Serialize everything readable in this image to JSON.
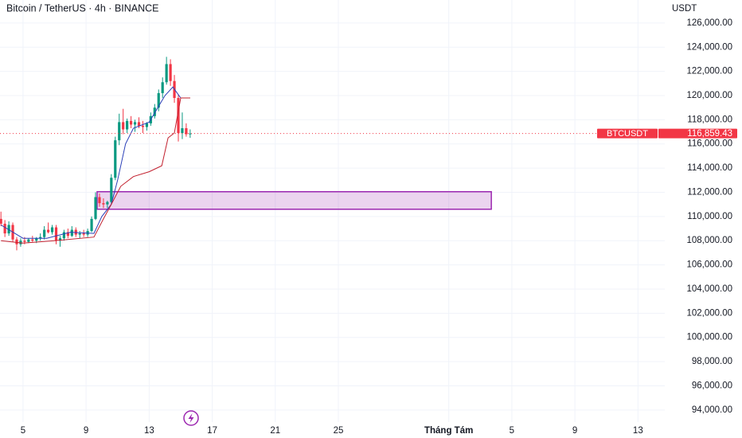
{
  "chart_data": {
    "type": "candlestick",
    "title": "Bitcoin / TetherUS · 4h · BINANCE",
    "y_axis_label": "USDT",
    "xlim": [
      3.54,
      45.7
    ],
    "xticks": [
      5,
      9,
      13,
      17,
      21,
      25,
      {
        "value": 32,
        "label": "Tháng Tám"
      },
      {
        "value": 36,
        "label": "5"
      },
      {
        "value": 40,
        "label": "9"
      },
      {
        "value": 44,
        "label": "13"
      }
    ],
    "ylim": [
      93000,
      127900
    ],
    "yticks": [
      {
        "value": 94000,
        "label": "94,000.00"
      },
      {
        "value": 96000,
        "label": "96,000.00"
      },
      {
        "value": 98000,
        "label": "98,000.00"
      },
      {
        "value": 100000,
        "label": "100,000.00"
      },
      {
        "value": 102000,
        "label": "102,000.00"
      },
      {
        "value": 104000,
        "label": "104,000.00"
      },
      {
        "value": 106000,
        "label": "106,000.00"
      },
      {
        "value": 108000,
        "label": "108,000.00"
      },
      {
        "value": 110000,
        "label": "110,000.00"
      },
      {
        "value": 112000,
        "label": "112,000.00"
      },
      {
        "value": 114000,
        "label": "114,000.00"
      },
      {
        "value": 116000,
        "label": "116,000.00"
      },
      {
        "value": 118000,
        "label": "118,000.00"
      },
      {
        "value": 120000,
        "label": "120,000.00"
      },
      {
        "value": 122000,
        "label": "122,000.00"
      },
      {
        "value": 124000,
        "label": "124,000.00"
      },
      {
        "value": 126000,
        "label": "126,000.00"
      }
    ],
    "grid": true,
    "up_color": "#089981",
    "down_color": "#f23645",
    "x": [
      3.6,
      3.85,
      4.1,
      4.35,
      4.6,
      4.85,
      5.1,
      5.35,
      5.6,
      5.85,
      6.1,
      6.35,
      6.6,
      6.85,
      7.1,
      7.35,
      7.6,
      7.85,
      8.1,
      8.35,
      8.6,
      8.85,
      9.1,
      9.35,
      9.6,
      9.85,
      10.1,
      10.35,
      10.6,
      10.85,
      11.1,
      11.35,
      11.6,
      11.85,
      12.1,
      12.35,
      12.6,
      12.85,
      13.1,
      13.35,
      13.6,
      13.85,
      14.1,
      14.35,
      14.6,
      14.85,
      15.1,
      15.35,
      15.6
    ],
    "open": [
      109800,
      109400,
      108600,
      109300,
      108100,
      107700,
      108000,
      107900,
      108100,
      108000,
      108200,
      108300,
      108900,
      108700,
      109100,
      108000,
      108200,
      108700,
      108400,
      108900,
      108500,
      108600,
      108500,
      108800,
      109800,
      111600,
      111100,
      111000,
      111200,
      113200,
      116300,
      117800,
      117200,
      117900,
      117600,
      117800,
      117500,
      117400,
      117700,
      118300,
      119000,
      120200,
      121100,
      122600,
      121200,
      119800,
      116900,
      117300,
      116800
    ],
    "high": [
      110400,
      109700,
      109600,
      109500,
      108300,
      108200,
      108300,
      108200,
      108400,
      108300,
      108600,
      109200,
      109500,
      109300,
      109300,
      108400,
      108900,
      109000,
      109200,
      109100,
      108800,
      108900,
      109000,
      110000,
      112000,
      111900,
      111500,
      111300,
      113500,
      116600,
      118500,
      118900,
      118100,
      118300,
      118000,
      118200,
      117900,
      117800,
      118600,
      119300,
      120500,
      121500,
      123200,
      123000,
      121700,
      120100,
      118600,
      117700,
      117200
    ],
    "low": [
      109200,
      108300,
      108400,
      107900,
      107200,
      107500,
      107700,
      107800,
      107900,
      107800,
      108000,
      108100,
      108600,
      108500,
      107700,
      107500,
      108000,
      108200,
      108300,
      108300,
      108200,
      108300,
      108300,
      108700,
      109700,
      110800,
      110700,
      110700,
      111000,
      113000,
      115900,
      116800,
      116900,
      117300,
      117000,
      117300,
      116900,
      117100,
      117500,
      118100,
      118700,
      119800,
      120900,
      120800,
      119400,
      116200,
      116400,
      116600,
      116500
    ],
    "close": [
      109400,
      108600,
      109300,
      108100,
      107700,
      108000,
      107900,
      108100,
      108000,
      108200,
      108300,
      108900,
      108700,
      109100,
      108000,
      108200,
      108700,
      108400,
      108900,
      108500,
      108600,
      108500,
      108800,
      109800,
      111600,
      111100,
      111000,
      111200,
      113200,
      116300,
      117800,
      117200,
      117900,
      117600,
      117800,
      117500,
      117400,
      117700,
      118300,
      119000,
      120200,
      121100,
      122600,
      121200,
      119800,
      116900,
      117300,
      116800,
      116859.43
    ],
    "lines": [
      {
        "color": "#2a3fb8",
        "x": [
          3.6,
          5,
          6.5,
          8,
          9.5,
          10,
          10.6,
          11,
          11.5,
          12,
          13,
          14,
          14.5,
          15,
          15.6
        ],
        "values": [
          109300,
          108200,
          108200,
          108700,
          108600,
          110000,
          111000,
          113000,
          116000,
          117300,
          117800,
          120000,
          120700,
          119800,
          119800
        ]
      },
      {
        "color": "#c2202e",
        "x": [
          3.6,
          5,
          7,
          9.5,
          10.1,
          10.6,
          11.2,
          12,
          13,
          13.8,
          14.2,
          14.6,
          15,
          15.6
        ],
        "values": [
          108000,
          107800,
          108000,
          108300,
          109800,
          111000,
          112500,
          113300,
          113700,
          114200,
          116500,
          116900,
          119800,
          119800
        ]
      }
    ],
    "zone": {
      "color": "#9c27b0",
      "x": [
        9.7,
        34.7
      ],
      "y": [
        110600,
        112050
      ]
    },
    "last_price": {
      "symbol": "BTCUSDT",
      "value": 116859.43,
      "value_label": "116,859.43",
      "color": "#f23645"
    }
  }
}
